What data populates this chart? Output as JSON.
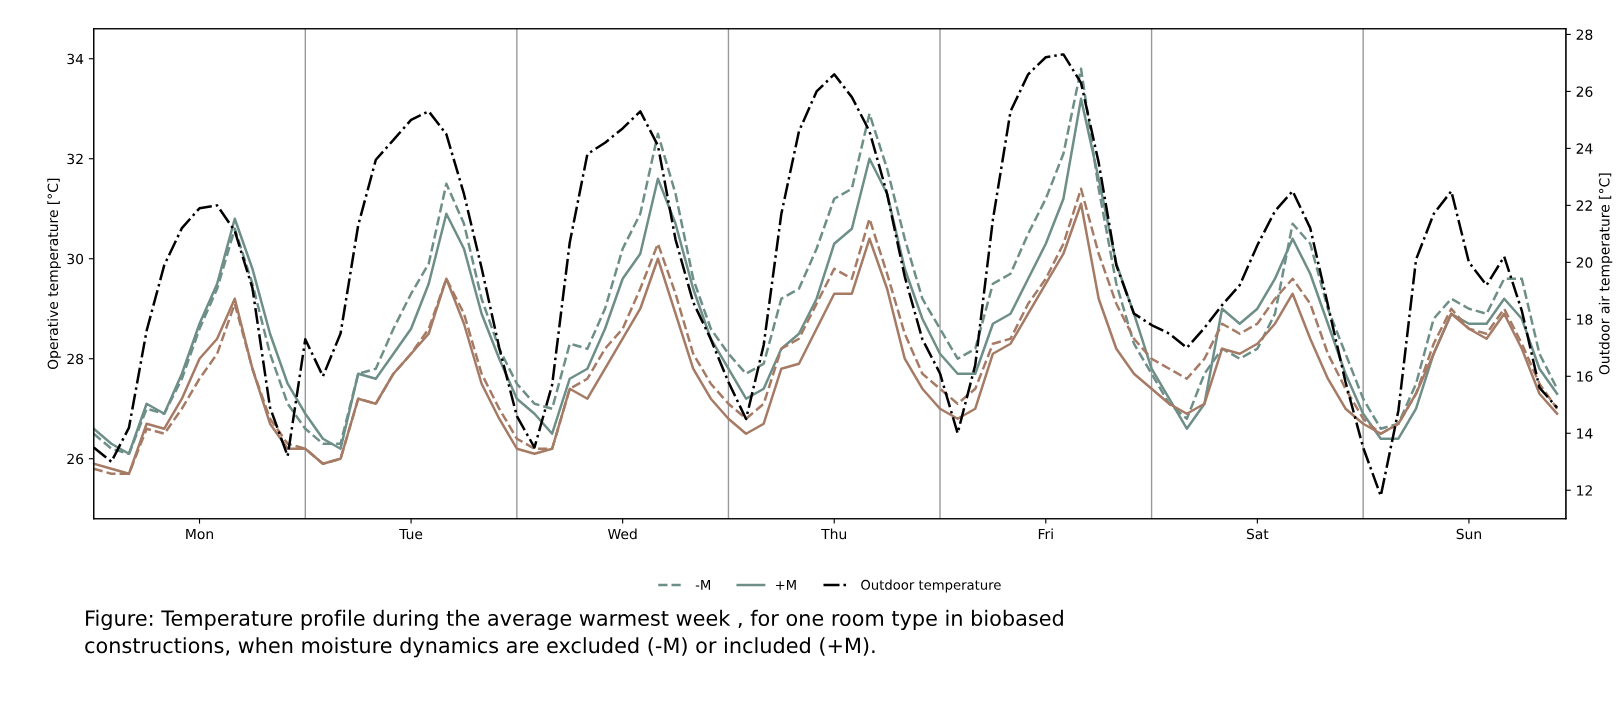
{
  "chart_data": {
    "type": "line",
    "ylabel": "Operative temperature [°C]",
    "y2label": "Outdoor air temperature [°C]",
    "categories": [
      null,
      null,
      null,
      null,
      null,
      null,
      "Mon",
      null,
      null,
      null,
      null,
      null,
      null,
      null,
      null,
      null,
      null,
      null,
      "Tue",
      null,
      null,
      null,
      null,
      null,
      null,
      null,
      null,
      null,
      null,
      null,
      "Wed",
      null,
      null,
      null,
      null,
      null,
      null,
      null,
      null,
      null,
      null,
      null,
      "Thu",
      null,
      null,
      null,
      null,
      null,
      null,
      null,
      null,
      null,
      null,
      null,
      "Fri",
      null,
      null,
      null,
      null,
      null,
      null,
      null,
      null,
      null,
      null,
      null,
      "Sat",
      null,
      null,
      null,
      null,
      null,
      null,
      null,
      null,
      null,
      null,
      null,
      "Sun",
      null,
      null,
      null,
      null,
      null
    ],
    "ylim": [
      24.8,
      34.6
    ],
    "yticks": [
      26,
      28,
      30,
      32,
      34
    ],
    "y2lim": [
      11,
      28.2
    ],
    "y2ticks": [
      12,
      14,
      16,
      18,
      20,
      22,
      24,
      26,
      28
    ],
    "grid": "x",
    "legend": "bottom",
    "annotations": [
      "Figure: Temperature profile during the average warmest week , for one room type in biobased\nconstructions, when moisture dynamics are excluded (-M) or included (+M)."
    ],
    "series": [
      {
        "name": "-M",
        "color": "#6e8f88",
        "line_style": "dashed",
        "values": [
          26.5,
          26.2,
          26.1,
          27.0,
          26.9,
          27.6,
          28.6,
          29.4,
          30.6,
          29.5,
          28.1,
          27.1,
          26.6,
          26.3,
          26.3,
          27.7,
          27.8,
          28.6,
          29.3,
          29.9,
          31.5,
          30.7,
          29.2,
          28.2,
          27.5,
          27.1,
          27.0,
          28.3,
          28.2,
          29.0,
          30.2,
          30.9,
          32.5,
          31.3,
          29.6,
          28.6,
          28.1,
          27.7,
          27.9,
          29.2,
          29.4,
          30.2,
          31.2,
          31.4,
          32.9,
          31.8,
          30.4,
          29.2,
          28.6,
          28.0,
          28.2,
          29.5,
          29.7,
          30.5,
          31.2,
          32.1,
          33.8,
          31.4,
          29.5,
          28.3,
          27.7,
          27.1,
          26.8,
          27.7,
          28.2,
          28.0,
          28.2,
          28.9,
          30.7,
          30.3,
          29.0,
          28.1,
          27.2,
          26.6,
          26.7,
          27.5,
          28.8,
          29.2,
          29.0,
          28.9,
          29.6,
          29.6,
          28.1,
          27.4
        ]
      },
      {
        "name": "+M",
        "color": "#6e8f88",
        "line_style": "solid",
        "values": [
          26.6,
          26.3,
          26.1,
          27.1,
          26.9,
          27.7,
          28.7,
          29.5,
          30.8,
          29.8,
          28.5,
          27.5,
          26.9,
          26.4,
          26.2,
          27.7,
          27.6,
          28.1,
          28.6,
          29.5,
          30.9,
          30.2,
          28.9,
          28.0,
          27.2,
          26.9,
          26.5,
          27.6,
          27.8,
          28.6,
          29.6,
          30.1,
          31.6,
          30.7,
          29.4,
          28.4,
          27.8,
          27.2,
          27.4,
          28.2,
          28.5,
          29.2,
          30.3,
          30.6,
          32.0,
          31.3,
          29.8,
          28.8,
          28.1,
          27.7,
          27.7,
          28.7,
          28.9,
          29.6,
          30.3,
          31.2,
          33.2,
          31.6,
          29.9,
          28.9,
          27.8,
          27.2,
          26.6,
          27.1,
          29.0,
          28.7,
          29.0,
          29.6,
          30.4,
          29.7,
          28.7,
          27.7,
          26.9,
          26.4,
          26.4,
          27.0,
          28.1,
          28.9,
          28.7,
          28.7,
          29.2,
          28.8,
          27.8,
          27.3
        ]
      },
      {
        "color": "#a67b66",
        "line_style": "dashed",
        "values": [
          25.8,
          25.7,
          25.7,
          26.6,
          26.5,
          27.0,
          27.6,
          28.1,
          29.1,
          27.8,
          26.8,
          26.3,
          26.2,
          25.9,
          26.0,
          27.2,
          27.1,
          27.7,
          28.1,
          28.6,
          29.6,
          28.9,
          27.7,
          27.0,
          26.4,
          26.2,
          26.2,
          27.4,
          27.6,
          28.2,
          28.6,
          29.4,
          30.3,
          29.3,
          28.1,
          27.5,
          27.1,
          26.8,
          27.1,
          28.2,
          28.4,
          29.1,
          29.8,
          29.6,
          30.8,
          29.7,
          28.5,
          27.7,
          27.4,
          27.1,
          27.4,
          28.3,
          28.4,
          29.1,
          29.6,
          30.3,
          31.4,
          30.1,
          29.1,
          28.4,
          28.0,
          27.8,
          27.6,
          28.0,
          28.7,
          28.5,
          28.7,
          29.2,
          29.6,
          29.1,
          28.1,
          27.4,
          26.8,
          26.5,
          26.7,
          27.3,
          28.3,
          29.0,
          28.6,
          28.5,
          29.0,
          28.3,
          27.5,
          27.0
        ]
      },
      {
        "color": "#a67b66",
        "line_style": "solid",
        "values": [
          25.9,
          25.8,
          25.7,
          26.7,
          26.6,
          27.2,
          28.0,
          28.4,
          29.2,
          27.8,
          26.7,
          26.2,
          26.2,
          25.9,
          26.0,
          27.2,
          27.1,
          27.7,
          28.1,
          28.5,
          29.6,
          28.7,
          27.5,
          26.8,
          26.2,
          26.1,
          26.2,
          27.4,
          27.2,
          27.8,
          28.4,
          29.0,
          30.0,
          28.9,
          27.8,
          27.2,
          26.8,
          26.5,
          26.7,
          27.8,
          27.9,
          28.6,
          29.3,
          29.3,
          30.4,
          29.4,
          28.0,
          27.4,
          27.0,
          26.8,
          27.0,
          28.1,
          28.3,
          28.9,
          29.5,
          30.1,
          31.1,
          29.2,
          28.2,
          27.7,
          27.4,
          27.1,
          26.9,
          27.1,
          28.2,
          28.1,
          28.3,
          28.7,
          29.3,
          28.4,
          27.6,
          27.0,
          26.7,
          26.5,
          26.7,
          27.3,
          28.1,
          28.9,
          28.6,
          28.4,
          28.9,
          28.2,
          27.3,
          26.9
        ]
      },
      {
        "name": "Outdoor temperature",
        "color": "#000000",
        "line_style": "dashdot",
        "axis": "y2",
        "values": [
          13.5,
          13.0,
          14.2,
          17.6,
          19.9,
          21.2,
          21.9,
          22.0,
          21.1,
          19.1,
          14.9,
          13.2,
          17.3,
          16.0,
          17.5,
          21.3,
          23.6,
          24.3,
          25.0,
          25.3,
          24.5,
          22.4,
          19.8,
          17.0,
          14.6,
          13.5,
          15.7,
          20.7,
          23.8,
          24.2,
          24.7,
          25.3,
          24.1,
          20.8,
          18.6,
          17.3,
          15.8,
          14.5,
          17.1,
          21.7,
          24.6,
          26.0,
          26.6,
          25.8,
          24.6,
          22.4,
          19.5,
          17.3,
          16.1,
          14.0,
          16.4,
          21.5,
          25.3,
          26.6,
          27.2,
          27.3,
          26.3,
          23.5,
          19.9,
          18.2,
          17.8,
          17.5,
          17.0,
          17.7,
          18.5,
          19.2,
          20.6,
          21.8,
          22.5,
          21.2,
          18.5,
          15.8,
          13.5,
          11.8,
          14.8,
          20.1,
          21.7,
          22.5,
          20.0,
          19.2,
          20.2,
          18.3,
          15.6,
          14.9
        ]
      }
    ]
  }
}
